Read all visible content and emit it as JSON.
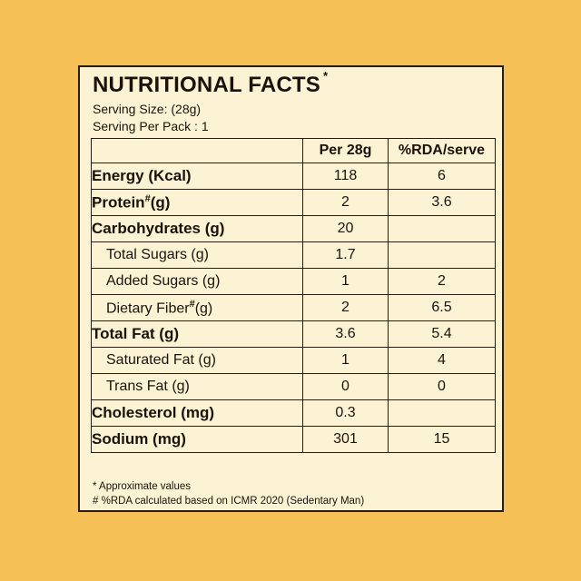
{
  "card": {
    "title": "NUTRITIONAL FACTS",
    "title_mark": "*",
    "serving_size": "Serving Size: (28g)",
    "serving_per_pack": "Serving Per Pack : 1"
  },
  "table": {
    "headers": [
      "",
      "Per 28g",
      "%RDA/serve"
    ],
    "rows": [
      {
        "label": "Energy (Kcal)",
        "mark": "",
        "suffix": "",
        "style": "main",
        "per": "118",
        "rda": "6"
      },
      {
        "label": "Protein",
        "mark": "#",
        "suffix": "(g)",
        "style": "main",
        "per": "2",
        "rda": "3.6"
      },
      {
        "label": "Carbohydrates (g)",
        "mark": "",
        "suffix": "",
        "style": "main",
        "per": "20",
        "rda": ""
      },
      {
        "label": "Total Sugars (g)",
        "mark": "",
        "suffix": "",
        "style": "sub",
        "per": "1.7",
        "rda": ""
      },
      {
        "label": "Added Sugars (g)",
        "mark": "",
        "suffix": "",
        "style": "sub",
        "per": "1",
        "rda": "2"
      },
      {
        "label": "Dietary Fiber",
        "mark": "#",
        "suffix": "(g)",
        "style": "sub",
        "per": "2",
        "rda": "6.5"
      },
      {
        "label": "Total Fat (g)",
        "mark": "",
        "suffix": "",
        "style": "main",
        "per": "3.6",
        "rda": "5.4"
      },
      {
        "label": "Saturated Fat (g)",
        "mark": "",
        "suffix": "",
        "style": "sub",
        "per": "1",
        "rda": "4"
      },
      {
        "label": "Trans Fat (g)",
        "mark": "",
        "suffix": "",
        "style": "sub",
        "per": "0",
        "rda": "0"
      },
      {
        "label": "Cholesterol (mg)",
        "mark": "",
        "suffix": "",
        "style": "main",
        "per": "0.3",
        "rda": ""
      },
      {
        "label": "Sodium (mg)",
        "mark": "",
        "suffix": "",
        "style": "main",
        "per": "301",
        "rda": "15"
      }
    ]
  },
  "footnotes": [
    "* Approximate values",
    "# %RDA calculated based on ICMR 2020 (Sedentary Man)"
  ],
  "colors": {
    "background": "#f5c056",
    "card": "#fbf3d3",
    "text": "#1c1208"
  }
}
